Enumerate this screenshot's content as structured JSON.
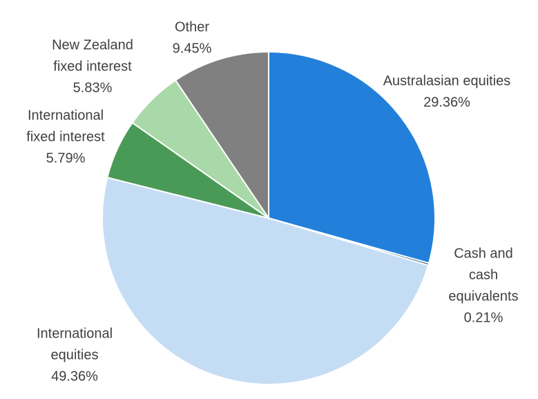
{
  "chart_data": {
    "type": "pie",
    "title": "",
    "legend": "none",
    "slices": [
      {
        "label_lines": [
          "Australasian equities"
        ],
        "value": 29.36,
        "value_text": "29.36%",
        "color": "#2380DA"
      },
      {
        "label_lines": [
          "Cash and",
          "cash",
          "equivalents"
        ],
        "value": 0.21,
        "value_text": "0.21%",
        "color": "#1F4E79"
      },
      {
        "label_lines": [
          "International",
          "equities"
        ],
        "value": 49.36,
        "value_text": "49.36%",
        "color": "#C5DDF4"
      },
      {
        "label_lines": [
          "International",
          "fixed interest"
        ],
        "value": 5.79,
        "value_text": "5.79%",
        "color": "#4A9A57"
      },
      {
        "label_lines": [
          "New Zealand",
          "fixed interest"
        ],
        "value": 5.83,
        "value_text": "5.83%",
        "color": "#A9D9A8"
      },
      {
        "label_lines": [
          "Other"
        ],
        "value": 9.45,
        "value_text": "9.45%",
        "color": "#808080"
      }
    ]
  }
}
